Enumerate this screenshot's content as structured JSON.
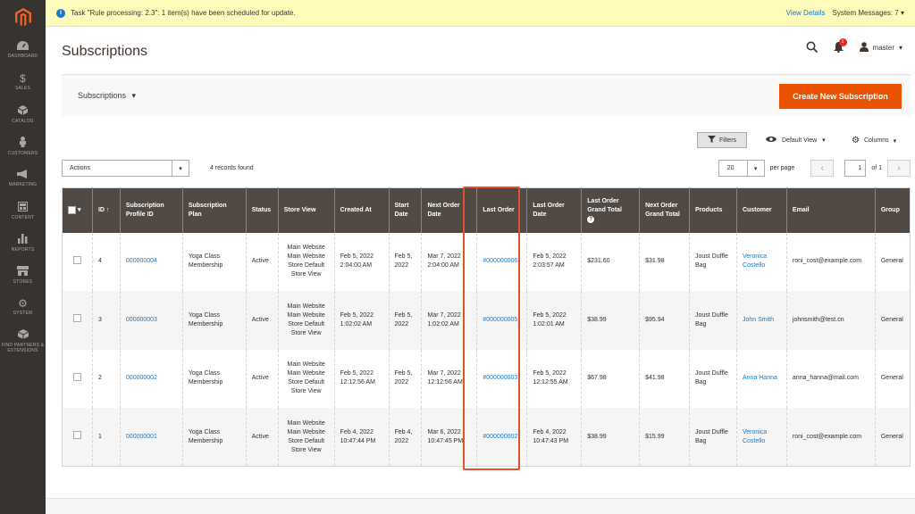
{
  "sidebar": {
    "items": [
      {
        "label": "Dashboard",
        "icon": "speedometer-icon"
      },
      {
        "label": "Sales",
        "icon": "dollar-icon"
      },
      {
        "label": "Catalog",
        "icon": "cube-icon"
      },
      {
        "label": "Customers",
        "icon": "person-icon"
      },
      {
        "label": "Marketing",
        "icon": "megaphone-icon"
      },
      {
        "label": "Content",
        "icon": "layout-icon"
      },
      {
        "label": "Reports",
        "icon": "bar-chart-icon"
      },
      {
        "label": "Stores",
        "icon": "store-icon"
      },
      {
        "label": "System",
        "icon": "gear-icon"
      },
      {
        "label": "Find Partners & Extensions",
        "icon": "box-icon"
      }
    ]
  },
  "notice": {
    "text": "Task \"Rule processing: 2.3\": 1 item(s) have been scheduled for update.",
    "view_details": "View Details",
    "system_messages": "System Messages: 7"
  },
  "header": {
    "title": "Subscriptions",
    "notification_count": "1",
    "user": "master"
  },
  "toolbar": {
    "switcher_label": "Subscriptions",
    "create_button": "Create New Subscription"
  },
  "grid_controls": {
    "filters": "Filters",
    "view": "Default View",
    "columns": "Columns"
  },
  "actions_row": {
    "actions_label": "Actions",
    "records_found": "4 records found",
    "per_page_value": "20",
    "per_page_label": "per page",
    "current_page": "1",
    "of_pages": "of 1"
  },
  "columns": [
    "ID",
    "Subscription Profile ID",
    "Subscription Plan",
    "Status",
    "Store View",
    "Created At",
    "Start Date",
    "Next Order Date",
    "Last Order",
    "Last Order Date",
    "Last Order Grand Total",
    "Next Order Grand Total",
    "Products",
    "Customer",
    "Email",
    "Group"
  ],
  "rows": [
    {
      "id": "4",
      "profile_id": "000000004",
      "plan": "Yoga Class Membership",
      "status": "Active",
      "store_view": "Main Website Main Website Store Default Store View",
      "created_at": "Feb 5, 2022 2:04:00 AM",
      "start_date": "Feb 5, 2022",
      "next_order_date": "Mar 7, 2022 2:04:00 AM",
      "last_order": "#000000006",
      "last_order_date": "Feb 5, 2022 2:03:57 AM",
      "last_total": "$231.60",
      "next_total": "$31.98",
      "products": "Joust Duffle Bag",
      "customer": "Veronica Costello",
      "email": "roni_cost@example.com",
      "group": "General"
    },
    {
      "id": "3",
      "profile_id": "000000003",
      "plan": "Yoga Class Membership",
      "status": "Active",
      "store_view": "Main Website Main Website Store Default Store View",
      "created_at": "Feb 5, 2022 1:02:02 AM",
      "start_date": "Feb 5, 2022",
      "next_order_date": "Mar 7, 2022 1:02:02 AM",
      "last_order": "#000000005",
      "last_order_date": "Feb 5, 2022 1:02:01 AM",
      "last_total": "$38.99",
      "next_total": "$95.94",
      "products": "Joust Duffle Bag",
      "customer": "John Smith",
      "email": "johnsmith@test.cn",
      "group": "General"
    },
    {
      "id": "2",
      "profile_id": "000000002",
      "plan": "Yoga Class Membership",
      "status": "Active",
      "store_view": "Main Website Main Website Store Default Store View",
      "created_at": "Feb 5, 2022 12:12:56 AM",
      "start_date": "Feb 5, 2022",
      "next_order_date": "Mar 7, 2022 12:12:56 AM",
      "last_order": "#000000003",
      "last_order_date": "Feb 5, 2022 12:12:55 AM",
      "last_total": "$67.98",
      "next_total": "$41.98",
      "products": "Joust Duffle Bag",
      "customer": "Anna Hanna",
      "email": "anna_hanna@mail.com",
      "group": "General"
    },
    {
      "id": "1",
      "profile_id": "000000001",
      "plan": "Yoga Class Membership",
      "status": "Active",
      "store_view": "Main Website Main Website Store Default Store View",
      "created_at": "Feb 4, 2022 10:47:44 PM",
      "start_date": "Feb 4, 2022",
      "next_order_date": "Mar 6, 2022 10:47:45 PM",
      "last_order": "#000000002",
      "last_order_date": "Feb 4, 2022 10:47:43 PM",
      "last_total": "$38.99",
      "next_total": "$15.99",
      "products": "Joust Duffle Bag",
      "customer": "Veronica Costello",
      "email": "roni_cost@example.com",
      "group": "General"
    }
  ],
  "colors": {
    "accent": "#eb5202",
    "header_bg": "#514943",
    "sidebar_bg": "#373330",
    "link": "#1979c3",
    "highlight": "#e0522b"
  }
}
